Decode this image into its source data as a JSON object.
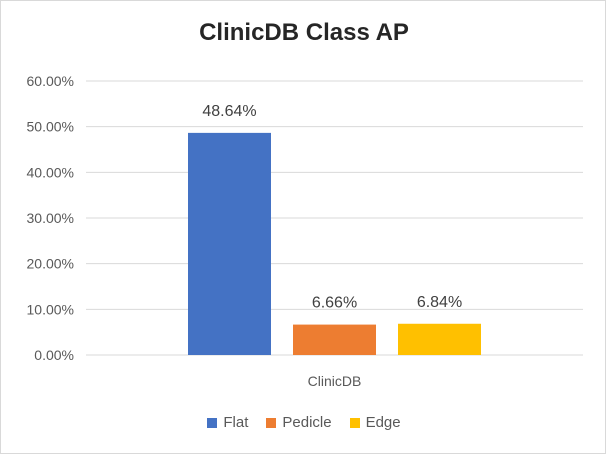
{
  "chart_data": {
    "type": "bar",
    "title": "ClinicDB Class AP",
    "categories": [
      "ClinicDB"
    ],
    "series": [
      {
        "name": "Flat",
        "values": [
          48.64
        ],
        "label": "48.64%",
        "color": "#4472c4"
      },
      {
        "name": "Pedicle",
        "values": [
          6.66
        ],
        "label": "6.66%",
        "color": "#ed7d31"
      },
      {
        "name": "Edge",
        "values": [
          6.84
        ],
        "label": "6.84%",
        "color": "#ffc000"
      }
    ],
    "ylim": [
      0,
      60
    ],
    "yticks": [
      0,
      10,
      20,
      30,
      40,
      50,
      60
    ],
    "ytick_labels": [
      "0.00%",
      "10.00%",
      "20.00%",
      "30.00%",
      "40.00%",
      "50.00%",
      "60.00%"
    ],
    "xlabel": "",
    "ylabel": "",
    "grid": true,
    "legend_position": "bottom"
  }
}
